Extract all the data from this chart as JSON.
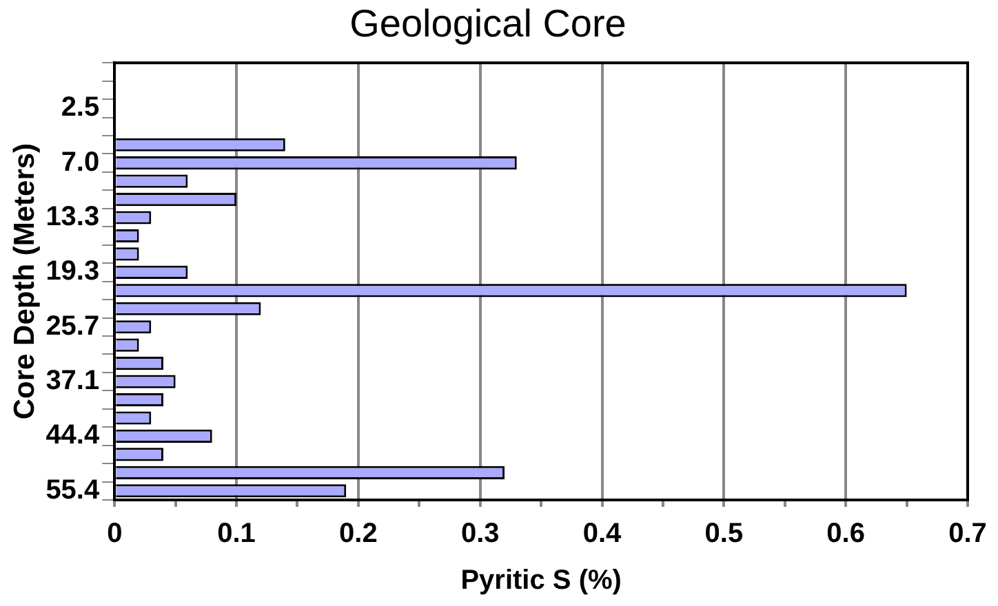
{
  "chart_data": {
    "type": "bar",
    "orientation": "horizontal",
    "title": "Geological Core",
    "xlabel": "Pyritic S (%)",
    "ylabel": "Core Depth (Meters)",
    "categories": [
      null,
      null,
      "2.5",
      null,
      null,
      "7.0",
      null,
      null,
      "13.3",
      null,
      null,
      "19.3",
      null,
      null,
      "25.7",
      null,
      null,
      "37.1",
      null,
      null,
      "44.4",
      null,
      null,
      "55.4"
    ],
    "values": [
      null,
      null,
      null,
      null,
      0.14,
      0.33,
      0.06,
      0.1,
      0.03,
      0.02,
      0.02,
      0.06,
      0.65,
      0.12,
      0.03,
      0.02,
      0.04,
      0.05,
      0.04,
      0.03,
      0.08,
      0.04,
      0.32,
      0.19
    ],
    "color": "#aaaaff",
    "xlim": [
      0,
      0.7
    ],
    "xticks": [
      0,
      {
        "value": 0.05,
        "label": null
      },
      0.1,
      {
        "value": 0.15,
        "label": null
      },
      0.2,
      {
        "value": 0.25,
        "label": null
      },
      0.3,
      {
        "value": 0.35,
        "label": null
      },
      0.4,
      {
        "value": 0.45,
        "label": null
      },
      0.5,
      {
        "value": 0.55,
        "label": null
      },
      0.6,
      {
        "value": 0.65,
        "label": null
      },
      0.7
    ],
    "grid": "x",
    "legend": false
  }
}
